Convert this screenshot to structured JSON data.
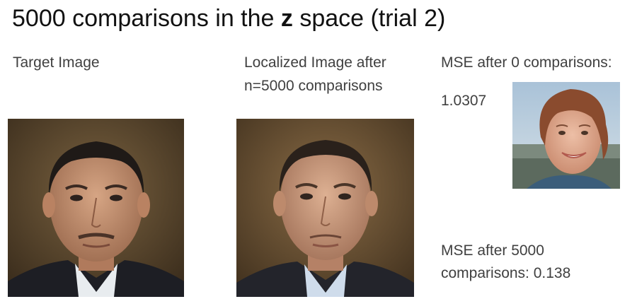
{
  "title": {
    "prefix": "5000 comparisons in the ",
    "bold": "z",
    "suffix": " space (trial 2)"
  },
  "target": {
    "label": "Target Image"
  },
  "localized": {
    "label_line1": "Localized Image after",
    "label_line2": "n=5000 comparisons"
  },
  "initial": {
    "label": "MSE after 0 comparisons:",
    "value": "1.0307"
  },
  "final": {
    "label_line1": "MSE after 5000",
    "label_line2": "comparisons: 0.138"
  }
}
